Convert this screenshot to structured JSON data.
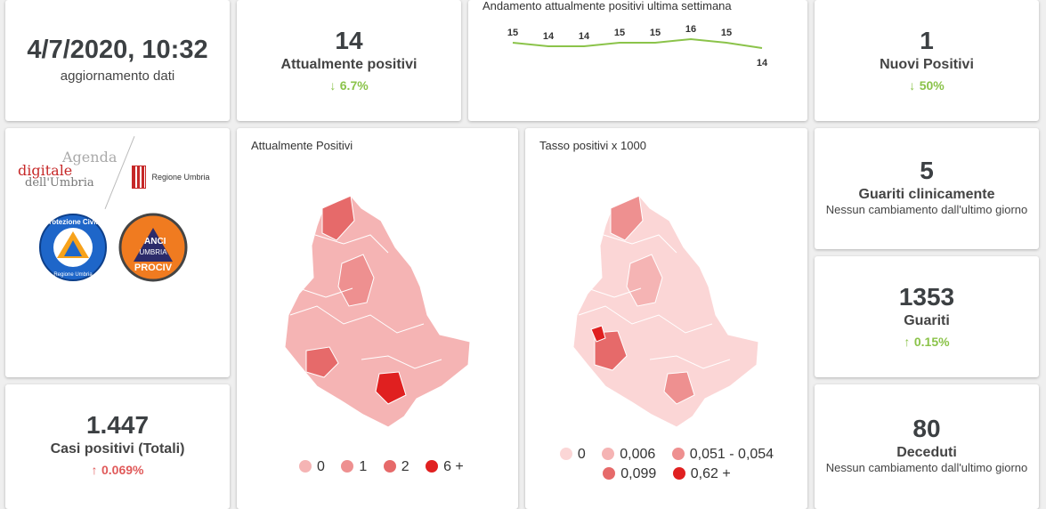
{
  "update": {
    "datetime": "4/7/2020, 10:32",
    "label": "aggiornamento dati"
  },
  "current_positive": {
    "value": "14",
    "label": "Attualmente positivi",
    "change": "6.7%",
    "direction": "down"
  },
  "trend": {
    "title": "Andamento attualmente positivi ultima settimana",
    "values": [
      15,
      14,
      14,
      15,
      15,
      16,
      15,
      14
    ]
  },
  "new_positive": {
    "value": "1",
    "label": "Nuovi Positivi",
    "change": "50%",
    "direction": "down"
  },
  "logos": {
    "agenda_line1": "Agenda",
    "agenda_line2": "digitale",
    "agenda_line3": "dell'Umbria",
    "regione": "Regione Umbria",
    "protezione": "Protezione Civile",
    "protezione_sub": "Regione Umbria",
    "anci_top": "ANCI",
    "anci_mid": "UMBRIA",
    "anci_bottom": "PROCIV"
  },
  "total_cases": {
    "value": "1.447",
    "label": "Casi positivi (Totali)",
    "change": "0.069%",
    "direction": "up"
  },
  "map1": {
    "title": "Attualmente Positivi",
    "legend": [
      {
        "label": "0",
        "color": "#f5b4b4"
      },
      {
        "label": "1",
        "color": "#ee9090"
      },
      {
        "label": "2",
        "color": "#e66a6a"
      },
      {
        "label": "6 +",
        "color": "#e02020"
      }
    ]
  },
  "map2": {
    "title": "Tasso positivi x 1000",
    "legend": [
      {
        "label": "0",
        "color": "#fbd6d6"
      },
      {
        "label": "0,006",
        "color": "#f5b4b4"
      },
      {
        "label": "0,051 - 0,054",
        "color": "#ee9090"
      },
      {
        "label": "0,099",
        "color": "#e66a6a"
      },
      {
        "label": "0,62 +",
        "color": "#e02020"
      }
    ]
  },
  "recovered_clinical": {
    "value": "5",
    "label": "Guariti clinicamente",
    "note": "Nessun cambiamento dall'ultimo giorno"
  },
  "recovered": {
    "value": "1353",
    "label": "Guariti",
    "change": "0.15%",
    "direction": "up"
  },
  "deceased": {
    "value": "80",
    "label": "Deceduti",
    "note": "Nessun cambiamento dall'ultimo giorno"
  },
  "colors": {
    "accent_green": "#8bc34a",
    "accent_red": "#e05a5a",
    "map_light": "#f5b4b4",
    "map_dark": "#e02020"
  }
}
